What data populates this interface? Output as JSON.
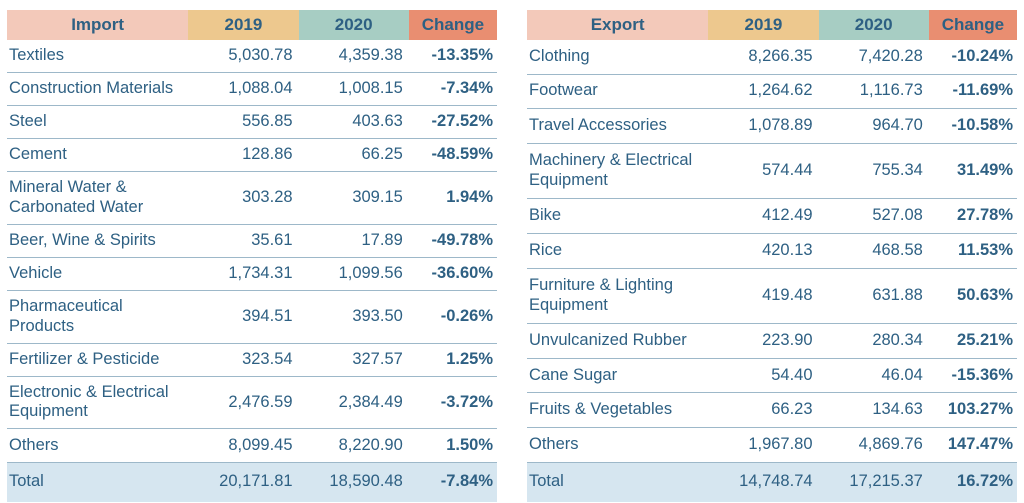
{
  "colors": {
    "header_bg": "#f3c9ba",
    "col2019_bg": "#edc88e",
    "col2020_bg": "#a7cdc3",
    "change_bg": "#e98e71",
    "text": "#2e6083",
    "total_bg": "#d6e6f0",
    "divider": "#9db8c9"
  },
  "chart_data": [
    {
      "type": "table",
      "title": "Import",
      "columns": [
        "Import",
        "2019",
        "2020",
        "Change"
      ],
      "rows": [
        [
          "Textiles",
          "5,030.78",
          "4,359.38",
          "-13.35%"
        ],
        [
          "Construction Materials",
          "1,088.04",
          "1,008.15",
          "-7.34%"
        ],
        [
          "Steel",
          "556.85",
          "403.63",
          "-27.52%"
        ],
        [
          "Cement",
          "128.86",
          "66.25",
          "-48.59%"
        ],
        [
          "Mineral Water & Carbonated Water",
          "303.28",
          "309.15",
          "1.94%"
        ],
        [
          "Beer, Wine & Spirits",
          "35.61",
          "17.89",
          "-49.78%"
        ],
        [
          "Vehicle",
          "1,734.31",
          "1,099.56",
          "-36.60%"
        ],
        [
          "Pharmaceutical Products",
          "394.51",
          "393.50",
          "-0.26%"
        ],
        [
          "Fertilizer & Pesticide",
          "323.54",
          "327.57",
          "1.25%"
        ],
        [
          "Electronic & Electrical Equipment",
          "2,476.59",
          "2,384.49",
          "-3.72%"
        ],
        [
          "Others",
          "8,099.45",
          "8,220.90",
          "1.50%"
        ]
      ],
      "total_row": [
        "Total",
        "20,171.81",
        "18,590.48",
        "-7.84%"
      ]
    },
    {
      "type": "table",
      "title": "Export",
      "columns": [
        "Export",
        "2019",
        "2020",
        "Change"
      ],
      "rows": [
        [
          "Clothing",
          "8,266.35",
          "7,420.28",
          "-10.24%"
        ],
        [
          "Footwear",
          "1,264.62",
          "1,116.73",
          "-11.69%"
        ],
        [
          "Travel Accessories",
          "1,078.89",
          "964.70",
          "-10.58%"
        ],
        [
          "Machinery & Electrical Equipment",
          "574.44",
          "755.34",
          "31.49%"
        ],
        [
          "Bike",
          "412.49",
          "527.08",
          "27.78%"
        ],
        [
          "Rice",
          "420.13",
          "468.58",
          "11.53%"
        ],
        [
          "Furniture & Lighting Equipment",
          "419.48",
          "631.88",
          "50.63%"
        ],
        [
          "Unvulcanized Rubber",
          "223.90",
          "280.34",
          "25.21%"
        ],
        [
          "Cane Sugar",
          "54.40",
          "46.04",
          "-15.36%"
        ],
        [
          "Fruits & Vegetables",
          "66.23",
          "134.63",
          "103.27%"
        ],
        [
          "Others",
          "1,967.80",
          "4,869.76",
          "147.47%"
        ]
      ],
      "total_row": [
        "Total",
        "14,748.74",
        "17,215.37",
        "16.72%"
      ]
    }
  ]
}
